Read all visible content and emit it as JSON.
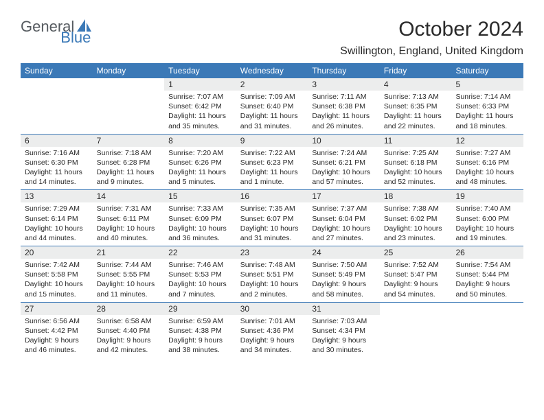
{
  "logo": {
    "text_gray": "General",
    "text_blue": "Blue",
    "sail_color": "#3b79b7"
  },
  "title": "October 2024",
  "location": "Swillington, England, United Kingdom",
  "colors": {
    "header_bg": "#3b79b7",
    "daynum_bg": "#eceded",
    "text": "#2a2a2a",
    "page_bg": "#ffffff"
  },
  "day_headers": [
    "Sunday",
    "Monday",
    "Tuesday",
    "Wednesday",
    "Thursday",
    "Friday",
    "Saturday"
  ],
  "weeks": [
    [
      null,
      null,
      {
        "n": "1",
        "sr": "Sunrise: 7:07 AM",
        "ss": "Sunset: 6:42 PM",
        "dl": "Daylight: 11 hours and 35 minutes."
      },
      {
        "n": "2",
        "sr": "Sunrise: 7:09 AM",
        "ss": "Sunset: 6:40 PM",
        "dl": "Daylight: 11 hours and 31 minutes."
      },
      {
        "n": "3",
        "sr": "Sunrise: 7:11 AM",
        "ss": "Sunset: 6:38 PM",
        "dl": "Daylight: 11 hours and 26 minutes."
      },
      {
        "n": "4",
        "sr": "Sunrise: 7:13 AM",
        "ss": "Sunset: 6:35 PM",
        "dl": "Daylight: 11 hours and 22 minutes."
      },
      {
        "n": "5",
        "sr": "Sunrise: 7:14 AM",
        "ss": "Sunset: 6:33 PM",
        "dl": "Daylight: 11 hours and 18 minutes."
      }
    ],
    [
      {
        "n": "6",
        "sr": "Sunrise: 7:16 AM",
        "ss": "Sunset: 6:30 PM",
        "dl": "Daylight: 11 hours and 14 minutes."
      },
      {
        "n": "7",
        "sr": "Sunrise: 7:18 AM",
        "ss": "Sunset: 6:28 PM",
        "dl": "Daylight: 11 hours and 9 minutes."
      },
      {
        "n": "8",
        "sr": "Sunrise: 7:20 AM",
        "ss": "Sunset: 6:26 PM",
        "dl": "Daylight: 11 hours and 5 minutes."
      },
      {
        "n": "9",
        "sr": "Sunrise: 7:22 AM",
        "ss": "Sunset: 6:23 PM",
        "dl": "Daylight: 11 hours and 1 minute."
      },
      {
        "n": "10",
        "sr": "Sunrise: 7:24 AM",
        "ss": "Sunset: 6:21 PM",
        "dl": "Daylight: 10 hours and 57 minutes."
      },
      {
        "n": "11",
        "sr": "Sunrise: 7:25 AM",
        "ss": "Sunset: 6:18 PM",
        "dl": "Daylight: 10 hours and 52 minutes."
      },
      {
        "n": "12",
        "sr": "Sunrise: 7:27 AM",
        "ss": "Sunset: 6:16 PM",
        "dl": "Daylight: 10 hours and 48 minutes."
      }
    ],
    [
      {
        "n": "13",
        "sr": "Sunrise: 7:29 AM",
        "ss": "Sunset: 6:14 PM",
        "dl": "Daylight: 10 hours and 44 minutes."
      },
      {
        "n": "14",
        "sr": "Sunrise: 7:31 AM",
        "ss": "Sunset: 6:11 PM",
        "dl": "Daylight: 10 hours and 40 minutes."
      },
      {
        "n": "15",
        "sr": "Sunrise: 7:33 AM",
        "ss": "Sunset: 6:09 PM",
        "dl": "Daylight: 10 hours and 36 minutes."
      },
      {
        "n": "16",
        "sr": "Sunrise: 7:35 AM",
        "ss": "Sunset: 6:07 PM",
        "dl": "Daylight: 10 hours and 31 minutes."
      },
      {
        "n": "17",
        "sr": "Sunrise: 7:37 AM",
        "ss": "Sunset: 6:04 PM",
        "dl": "Daylight: 10 hours and 27 minutes."
      },
      {
        "n": "18",
        "sr": "Sunrise: 7:38 AM",
        "ss": "Sunset: 6:02 PM",
        "dl": "Daylight: 10 hours and 23 minutes."
      },
      {
        "n": "19",
        "sr": "Sunrise: 7:40 AM",
        "ss": "Sunset: 6:00 PM",
        "dl": "Daylight: 10 hours and 19 minutes."
      }
    ],
    [
      {
        "n": "20",
        "sr": "Sunrise: 7:42 AM",
        "ss": "Sunset: 5:58 PM",
        "dl": "Daylight: 10 hours and 15 minutes."
      },
      {
        "n": "21",
        "sr": "Sunrise: 7:44 AM",
        "ss": "Sunset: 5:55 PM",
        "dl": "Daylight: 10 hours and 11 minutes."
      },
      {
        "n": "22",
        "sr": "Sunrise: 7:46 AM",
        "ss": "Sunset: 5:53 PM",
        "dl": "Daylight: 10 hours and 7 minutes."
      },
      {
        "n": "23",
        "sr": "Sunrise: 7:48 AM",
        "ss": "Sunset: 5:51 PM",
        "dl": "Daylight: 10 hours and 2 minutes."
      },
      {
        "n": "24",
        "sr": "Sunrise: 7:50 AM",
        "ss": "Sunset: 5:49 PM",
        "dl": "Daylight: 9 hours and 58 minutes."
      },
      {
        "n": "25",
        "sr": "Sunrise: 7:52 AM",
        "ss": "Sunset: 5:47 PM",
        "dl": "Daylight: 9 hours and 54 minutes."
      },
      {
        "n": "26",
        "sr": "Sunrise: 7:54 AM",
        "ss": "Sunset: 5:44 PM",
        "dl": "Daylight: 9 hours and 50 minutes."
      }
    ],
    [
      {
        "n": "27",
        "sr": "Sunrise: 6:56 AM",
        "ss": "Sunset: 4:42 PM",
        "dl": "Daylight: 9 hours and 46 minutes."
      },
      {
        "n": "28",
        "sr": "Sunrise: 6:58 AM",
        "ss": "Sunset: 4:40 PM",
        "dl": "Daylight: 9 hours and 42 minutes."
      },
      {
        "n": "29",
        "sr": "Sunrise: 6:59 AM",
        "ss": "Sunset: 4:38 PM",
        "dl": "Daylight: 9 hours and 38 minutes."
      },
      {
        "n": "30",
        "sr": "Sunrise: 7:01 AM",
        "ss": "Sunset: 4:36 PM",
        "dl": "Daylight: 9 hours and 34 minutes."
      },
      {
        "n": "31",
        "sr": "Sunrise: 7:03 AM",
        "ss": "Sunset: 4:34 PM",
        "dl": "Daylight: 9 hours and 30 minutes."
      },
      null,
      null
    ]
  ]
}
